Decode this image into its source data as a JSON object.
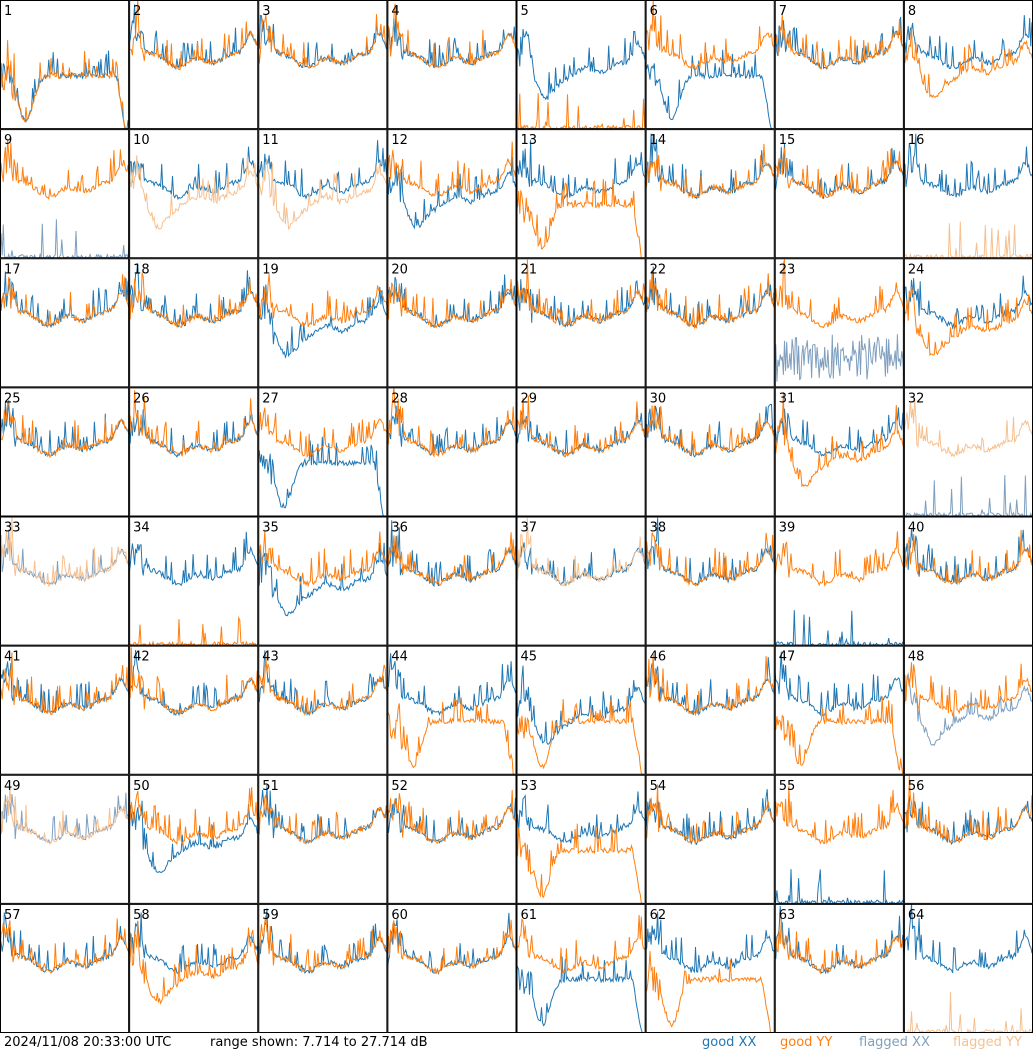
{
  "footer": {
    "timestamp": "2024/11/08 20:33:00 UTC",
    "range_text": "range shown: 7.714 to 27.714 dB"
  },
  "legend": [
    {
      "label": "good XX",
      "color": "#1f77b4"
    },
    {
      "label": "good YY",
      "color": "#ff7f0e"
    },
    {
      "label": "flagged XX",
      "color": "#7f9fbf"
    },
    {
      "label": "flagged YY",
      "color": "#f7c08f"
    }
  ],
  "chart_data": {
    "type": "line",
    "grid": "8x8 small multiples, one panel per antenna",
    "ylim": [
      7.714,
      27.714
    ],
    "y_unit": "dB",
    "panels": [
      {
        "label": "1",
        "xx": "good",
        "yy": "good",
        "xx_shape": "rolloff",
        "yy_shape": "rolloff"
      },
      {
        "label": "2",
        "xx": "good",
        "yy": "good",
        "xx_shape": "normal",
        "yy_shape": "normal"
      },
      {
        "label": "3",
        "xx": "good",
        "yy": "good",
        "xx_shape": "normal",
        "yy_shape": "normal"
      },
      {
        "label": "4",
        "xx": "good",
        "yy": "good",
        "xx_shape": "normal",
        "yy_shape": "normal"
      },
      {
        "label": "5",
        "xx": "good",
        "yy": "good",
        "xx_shape": "dip",
        "yy_shape": "bottom-spiky"
      },
      {
        "label": "6",
        "xx": "good",
        "yy": "good",
        "xx_shape": "rolloff",
        "yy_shape": "normal"
      },
      {
        "label": "7",
        "xx": "good",
        "yy": "good",
        "xx_shape": "normal",
        "yy_shape": "normal"
      },
      {
        "label": "8",
        "xx": "good",
        "yy": "good",
        "xx_shape": "normal",
        "yy_shape": "dip"
      },
      {
        "label": "9",
        "xx": "flagged",
        "yy": "good",
        "xx_shape": "bottom-spiky",
        "yy_shape": "normal"
      },
      {
        "label": "10",
        "xx": "good",
        "yy": "flagged",
        "xx_shape": "normal",
        "yy_shape": "dip"
      },
      {
        "label": "11",
        "xx": "good",
        "yy": "flagged",
        "xx_shape": "normal",
        "yy_shape": "dip"
      },
      {
        "label": "12",
        "xx": "good",
        "yy": "good",
        "xx_shape": "dip",
        "yy_shape": "normal"
      },
      {
        "label": "13",
        "xx": "good",
        "yy": "good",
        "xx_shape": "normal",
        "yy_shape": "rolloff"
      },
      {
        "label": "14",
        "xx": "good",
        "yy": "good",
        "xx_shape": "normal",
        "yy_shape": "normal"
      },
      {
        "label": "15",
        "xx": "good",
        "yy": "good",
        "xx_shape": "normal",
        "yy_shape": "normal"
      },
      {
        "label": "16",
        "xx": "good",
        "yy": "flagged",
        "xx_shape": "normal",
        "yy_shape": "bottom-spiky"
      },
      {
        "label": "17",
        "xx": "good",
        "yy": "good",
        "xx_shape": "normal",
        "yy_shape": "normal"
      },
      {
        "label": "18",
        "xx": "good",
        "yy": "good",
        "xx_shape": "normal",
        "yy_shape": "normal"
      },
      {
        "label": "19",
        "xx": "good",
        "yy": "good",
        "xx_shape": "dip",
        "yy_shape": "normal"
      },
      {
        "label": "20",
        "xx": "good",
        "yy": "good",
        "xx_shape": "normal",
        "yy_shape": "normal"
      },
      {
        "label": "21",
        "xx": "good",
        "yy": "good",
        "xx_shape": "normal",
        "yy_shape": "normal"
      },
      {
        "label": "22",
        "xx": "good",
        "yy": "good",
        "xx_shape": "normal",
        "yy_shape": "normal"
      },
      {
        "label": "23",
        "xx": "flagged",
        "yy": "good",
        "xx_shape": "noisy-low",
        "yy_shape": "normal"
      },
      {
        "label": "24",
        "xx": "good",
        "yy": "good",
        "xx_shape": "normal",
        "yy_shape": "dip"
      },
      {
        "label": "25",
        "xx": "good",
        "yy": "good",
        "xx_shape": "normal",
        "yy_shape": "normal"
      },
      {
        "label": "26",
        "xx": "good",
        "yy": "good",
        "xx_shape": "normal",
        "yy_shape": "normal"
      },
      {
        "label": "27",
        "xx": "good",
        "yy": "good",
        "xx_shape": "rolloff",
        "yy_shape": "normal"
      },
      {
        "label": "28",
        "xx": "good",
        "yy": "good",
        "xx_shape": "normal",
        "yy_shape": "normal"
      },
      {
        "label": "29",
        "xx": "good",
        "yy": "good",
        "xx_shape": "normal",
        "yy_shape": "normal"
      },
      {
        "label": "30",
        "xx": "good",
        "yy": "good",
        "xx_shape": "normal",
        "yy_shape": "normal"
      },
      {
        "label": "31",
        "xx": "good",
        "yy": "good",
        "xx_shape": "normal",
        "yy_shape": "dip"
      },
      {
        "label": "32",
        "xx": "flagged",
        "yy": "flagged",
        "xx_shape": "bottom-spiky",
        "yy_shape": "normal"
      },
      {
        "label": "33",
        "xx": "flagged",
        "yy": "flagged",
        "xx_shape": "normal",
        "yy_shape": "normal"
      },
      {
        "label": "34",
        "xx": "good",
        "yy": "good",
        "xx_shape": "normal",
        "yy_shape": "bottom-spiky"
      },
      {
        "label": "35",
        "xx": "good",
        "yy": "good",
        "xx_shape": "dip",
        "yy_shape": "normal"
      },
      {
        "label": "36",
        "xx": "good",
        "yy": "good",
        "xx_shape": "normal",
        "yy_shape": "normal"
      },
      {
        "label": "37",
        "xx": "good",
        "yy": "flagged",
        "xx_shape": "normal",
        "yy_shape": "normal"
      },
      {
        "label": "38",
        "xx": "good",
        "yy": "good",
        "xx_shape": "normal",
        "yy_shape": "normal"
      },
      {
        "label": "39",
        "xx": "good",
        "yy": "good",
        "xx_shape": "bottom-spiky",
        "yy_shape": "normal"
      },
      {
        "label": "40",
        "xx": "good",
        "yy": "good",
        "xx_shape": "normal",
        "yy_shape": "normal"
      },
      {
        "label": "41",
        "xx": "good",
        "yy": "good",
        "xx_shape": "normal",
        "yy_shape": "normal"
      },
      {
        "label": "42",
        "xx": "good",
        "yy": "good",
        "xx_shape": "normal",
        "yy_shape": "normal"
      },
      {
        "label": "43",
        "xx": "good",
        "yy": "good",
        "xx_shape": "normal",
        "yy_shape": "normal"
      },
      {
        "label": "44",
        "xx": "good",
        "yy": "good",
        "xx_shape": "normal",
        "yy_shape": "rolloff"
      },
      {
        "label": "45",
        "xx": "good",
        "yy": "good",
        "xx_shape": "dip",
        "yy_shape": "rolloff"
      },
      {
        "label": "46",
        "xx": "good",
        "yy": "good",
        "xx_shape": "normal",
        "yy_shape": "normal"
      },
      {
        "label": "47",
        "xx": "good",
        "yy": "good",
        "xx_shape": "normal",
        "yy_shape": "rolloff"
      },
      {
        "label": "48",
        "xx": "flagged",
        "yy": "good",
        "xx_shape": "dip",
        "yy_shape": "normal"
      },
      {
        "label": "49",
        "xx": "flagged",
        "yy": "flagged",
        "xx_shape": "normal",
        "yy_shape": "normal"
      },
      {
        "label": "50",
        "xx": "good",
        "yy": "good",
        "xx_shape": "dip",
        "yy_shape": "normal"
      },
      {
        "label": "51",
        "xx": "good",
        "yy": "good",
        "xx_shape": "normal",
        "yy_shape": "normal"
      },
      {
        "label": "52",
        "xx": "good",
        "yy": "good",
        "xx_shape": "normal",
        "yy_shape": "normal"
      },
      {
        "label": "53",
        "xx": "good",
        "yy": "good",
        "xx_shape": "normal",
        "yy_shape": "rolloff"
      },
      {
        "label": "54",
        "xx": "good",
        "yy": "good",
        "xx_shape": "normal",
        "yy_shape": "normal"
      },
      {
        "label": "55",
        "xx": "good",
        "yy": "good",
        "xx_shape": "bottom-spiky",
        "yy_shape": "normal"
      },
      {
        "label": "56",
        "xx": "good",
        "yy": "good",
        "xx_shape": "normal",
        "yy_shape": "normal"
      },
      {
        "label": "57",
        "xx": "good",
        "yy": "good",
        "xx_shape": "normal",
        "yy_shape": "normal"
      },
      {
        "label": "58",
        "xx": "good",
        "yy": "good",
        "xx_shape": "normal",
        "yy_shape": "dip"
      },
      {
        "label": "59",
        "xx": "good",
        "yy": "good",
        "xx_shape": "normal",
        "yy_shape": "normal"
      },
      {
        "label": "60",
        "xx": "good",
        "yy": "good",
        "xx_shape": "normal",
        "yy_shape": "normal"
      },
      {
        "label": "61",
        "xx": "good",
        "yy": "good",
        "xx_shape": "rolloff",
        "yy_shape": "normal"
      },
      {
        "label": "62",
        "xx": "good",
        "yy": "good",
        "xx_shape": "normal",
        "yy_shape": "rolloff"
      },
      {
        "label": "63",
        "xx": "good",
        "yy": "good",
        "xx_shape": "normal",
        "yy_shape": "normal"
      },
      {
        "label": "64",
        "xx": "good",
        "yy": "flagged",
        "xx_shape": "normal",
        "yy_shape": "bottom-spiky"
      }
    ]
  }
}
